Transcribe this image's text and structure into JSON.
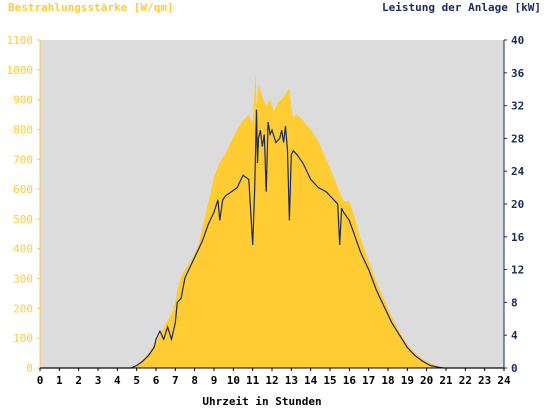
{
  "chart_data": {
    "type": "area",
    "title_left": "Bestrahlungsstärke [W/qm]",
    "title_right": "Leistung der Anlage [kW]",
    "xlabel": "Uhrzeit in Stunden",
    "x_ticks": [
      "0",
      "1",
      "2",
      "3",
      "4",
      "5",
      "6",
      "7",
      "8",
      "9",
      "10",
      "11",
      "12",
      "13",
      "14",
      "15",
      "16",
      "17",
      "18",
      "19",
      "20",
      "21",
      "22",
      "23",
      "24"
    ],
    "xlim": [
      0,
      24
    ],
    "y_left": {
      "label": "Bestrahlungsstärke [W/qm]",
      "lim": [
        0,
        1100
      ],
      "ticks": [
        "0",
        "100",
        "200",
        "300",
        "400",
        "500",
        "600",
        "700",
        "800",
        "900",
        "1000",
        "1100"
      ]
    },
    "y_right": {
      "label": "Leistung der Anlage [kW]",
      "lim": [
        0,
        40
      ],
      "ticks": [
        "0",
        "4",
        "8",
        "12",
        "16",
        "20",
        "24",
        "28",
        "32",
        "36",
        "40"
      ]
    },
    "colors": {
      "irradiance": "#ffcc33",
      "power": "#1a2a5a",
      "plot_bg": "#dcdcdc"
    },
    "series": [
      {
        "name": "Bestrahlungsstärke",
        "axis": "left",
        "x": [
          0,
          4.8,
          5.0,
          5.3,
          5.6,
          5.9,
          6.2,
          6.5,
          6.8,
          7.0,
          7.1,
          7.3,
          7.6,
          7.9,
          8.2,
          8.5,
          8.8,
          9.0,
          9.3,
          9.6,
          9.9,
          10.2,
          10.5,
          10.8,
          11.0,
          11.1,
          11.15,
          11.2,
          11.3,
          11.5,
          11.7,
          11.9,
          12.1,
          12.3,
          12.5,
          12.7,
          12.9,
          13.0,
          13.1,
          13.3,
          13.6,
          14.0,
          14.4,
          14.8,
          15.2,
          15.5,
          15.7,
          16.0,
          16.3,
          16.6,
          17.0,
          17.4,
          17.8,
          18.2,
          18.6,
          19.0,
          19.4,
          19.8,
          20.2,
          20.6,
          20.9,
          21.0,
          24
        ],
        "values": [
          0,
          0,
          10,
          25,
          50,
          80,
          110,
          150,
          180,
          220,
          260,
          310,
          340,
          370,
          410,
          500,
          580,
          640,
          690,
          720,
          760,
          800,
          830,
          850,
          820,
          930,
          990,
          880,
          950,
          910,
          880,
          900,
          860,
          890,
          900,
          920,
          940,
          870,
          840,
          850,
          830,
          800,
          760,
          700,
          640,
          590,
          560,
          560,
          500,
          430,
          360,
          290,
          230,
          170,
          120,
          80,
          50,
          30,
          15,
          5,
          2,
          0,
          0
        ]
      },
      {
        "name": "Leistung der Anlage",
        "axis": "right",
        "x": [
          0,
          4.7,
          5.0,
          5.3,
          5.6,
          5.9,
          6.0,
          6.2,
          6.4,
          6.6,
          6.8,
          7.0,
          7.1,
          7.3,
          7.5,
          7.8,
          8.1,
          8.4,
          8.7,
          9.0,
          9.2,
          9.3,
          9.45,
          9.6,
          9.9,
          10.2,
          10.5,
          10.8,
          11.0,
          11.1,
          11.2,
          11.25,
          11.3,
          11.4,
          11.5,
          11.6,
          11.7,
          11.8,
          11.9,
          12.0,
          12.2,
          12.4,
          12.5,
          12.6,
          12.7,
          12.8,
          12.9,
          13.0,
          13.1,
          13.3,
          13.6,
          14.0,
          14.4,
          14.8,
          15.2,
          15.4,
          15.5,
          15.6,
          15.7,
          16.0,
          16.3,
          16.6,
          17.0,
          17.4,
          17.8,
          18.2,
          18.6,
          19.0,
          19.4,
          19.8,
          20.2,
          20.6,
          20.9,
          21.0,
          24
        ],
        "values": [
          0,
          0,
          0.3,
          0.8,
          1.5,
          2.5,
          3.5,
          4.5,
          3.5,
          5.0,
          3.5,
          5.5,
          8.0,
          8.5,
          11.0,
          12.5,
          14.0,
          15.5,
          17.5,
          19.0,
          20.5,
          18.0,
          20.5,
          21.0,
          21.5,
          22.0,
          23.5,
          23.0,
          15.0,
          21.5,
          31.5,
          25.0,
          28.0,
          29.0,
          27.0,
          28.5,
          21.5,
          30.0,
          28.5,
          29.0,
          27.5,
          28.0,
          29.0,
          27.5,
          29.5,
          26.5,
          18.0,
          26.0,
          26.5,
          26.0,
          25.0,
          23.0,
          22.0,
          21.5,
          20.5,
          20.0,
          15.0,
          19.5,
          19.0,
          18.0,
          16.0,
          14.0,
          12.0,
          9.5,
          7.5,
          5.5,
          4.0,
          2.5,
          1.5,
          0.8,
          0.3,
          0.1,
          0,
          0,
          0
        ]
      }
    ],
    "grid": false,
    "legend": "none"
  }
}
